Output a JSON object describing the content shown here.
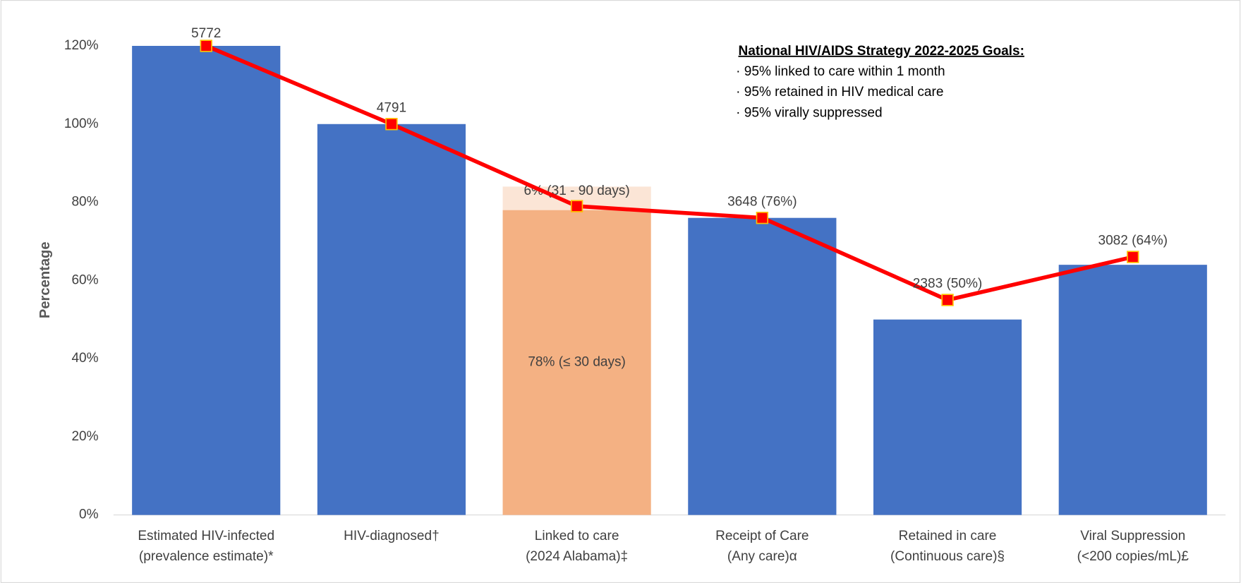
{
  "chart_data": {
    "type": "bar",
    "y_axis_label": "Percentage",
    "categories": [
      [
        "Estimated HIV-infected",
        "(prevalence estimate)*"
      ],
      [
        "HIV-diagnosed†"
      ],
      [
        "Linked to care",
        "(2024 Alabama)‡"
      ],
      [
        "Receipt of Care",
        "(Any care)α"
      ],
      [
        "Retained in care",
        "(Continuous care)§"
      ],
      [
        "Viral Suppression",
        "(<200 copies/mL)£"
      ]
    ],
    "series": [
      {
        "color": "#4472c4",
        "values": [
          120,
          100,
          null,
          76,
          50,
          64
        ]
      },
      {
        "color": "#f4b183",
        "values": [
          null,
          null,
          78,
          null,
          null,
          null
        ],
        "value_labels": [
          null,
          null,
          "78% (≤ 30 days)",
          null,
          null,
          null
        ]
      },
      {
        "color": "#fbe5d6",
        "values": [
          null,
          null,
          6,
          null,
          null,
          null
        ],
        "value_labels": [
          null,
          null,
          "6% (31 - 90 days)",
          null,
          null,
          null
        ]
      },
      {
        "type": "line",
        "color": "#ff0000",
        "marker_edge_color": "#ffc000",
        "values": [
          120,
          100,
          79,
          76,
          55,
          66
        ]
      }
    ],
    "bar_labels": [
      "5772",
      "4791",
      null,
      "3648 (76%)",
      "2383 (50%)",
      "3082 (64%)"
    ],
    "ylim": [
      0,
      120
    ],
    "yticks": [
      {
        "value": 0,
        "label": "0%"
      },
      {
        "value": 20,
        "label": "20%"
      },
      {
        "value": 40,
        "label": "40%"
      },
      {
        "value": 60,
        "label": "60%"
      },
      {
        "value": 80,
        "label": "80%"
      },
      {
        "value": 100,
        "label": "100%"
      },
      {
        "value": 120,
        "label": "120%"
      }
    ],
    "grid": false,
    "notes": {
      "title": "National HIV/AIDS Strategy 2022-2025 Goals:",
      "items": [
        "· 95% linked to care within 1 month",
        "· 95% retained in HIV medical care",
        "· 95% virally suppressed"
      ]
    }
  }
}
